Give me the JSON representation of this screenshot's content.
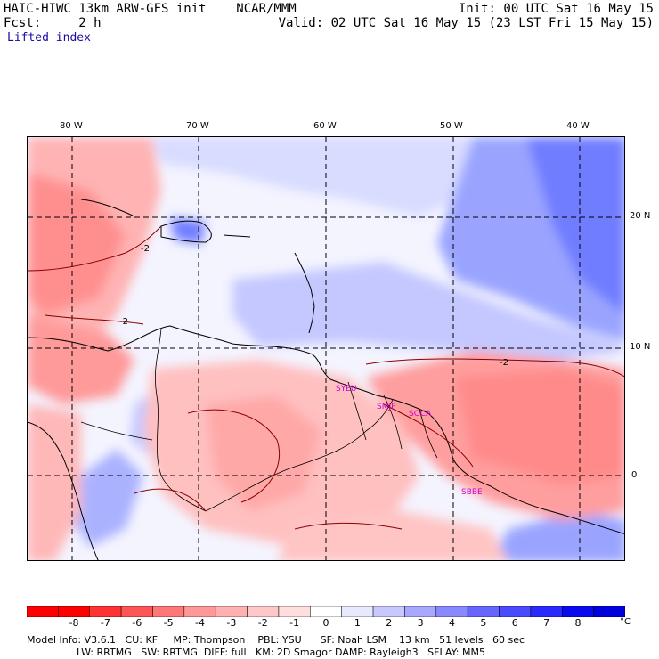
{
  "header": {
    "model_title": "HAIC-HIWC 13km ARW-GFS init    NCAR/MMM",
    "init_time": "Init: 00 UTC Sat 16 May 15",
    "fcst": "Fcst:     2 h",
    "valid_time": "Valid: 02 UTC Sat 16 May 15 (23 LST Fri 15 May 15)",
    "field_name": "Lifted index"
  },
  "map": {
    "lon_labels": [
      "80 W",
      "70 W",
      "60 W",
      "50 W",
      "40 W"
    ],
    "lat_labels": [
      "20 N",
      "10 N",
      "0"
    ],
    "contour_label": "-2",
    "stations": [
      "SYEU",
      "SMJP",
      "SOCA",
      "SBBE"
    ]
  },
  "colorbar": {
    "labels": [
      "-8",
      "-7",
      "-6",
      "-5",
      "-4",
      "-3",
      "-2",
      "-1",
      "0",
      "1",
      "2",
      "3",
      "4",
      "5",
      "6",
      "7",
      "8"
    ],
    "unit": "°C",
    "colors": [
      "#ff0000",
      "#ff3333",
      "#ff5555",
      "#ff7777",
      "#ff9999",
      "#ffb0b0",
      "#ffc8c8",
      "#ffdede",
      "#ffffff",
      "#e8e8ff",
      "#c8c8ff",
      "#a8a8ff",
      "#8888ff",
      "#6666ff",
      "#4a4aff",
      "#2a2aff",
      "#0a0aee"
    ]
  },
  "footer": {
    "line1": "Model Info: V3.6.1   CU: KF     MP: Thompson    PBL: YSU      SF: Noah LSM    13 km   51 levels   60 sec",
    "line2": "                LW: RRTMG   SW: RRTMG  DIFF: full   KM: 2D Smagor DAMP: Rayleigh3   SFLAY: MM5"
  }
}
